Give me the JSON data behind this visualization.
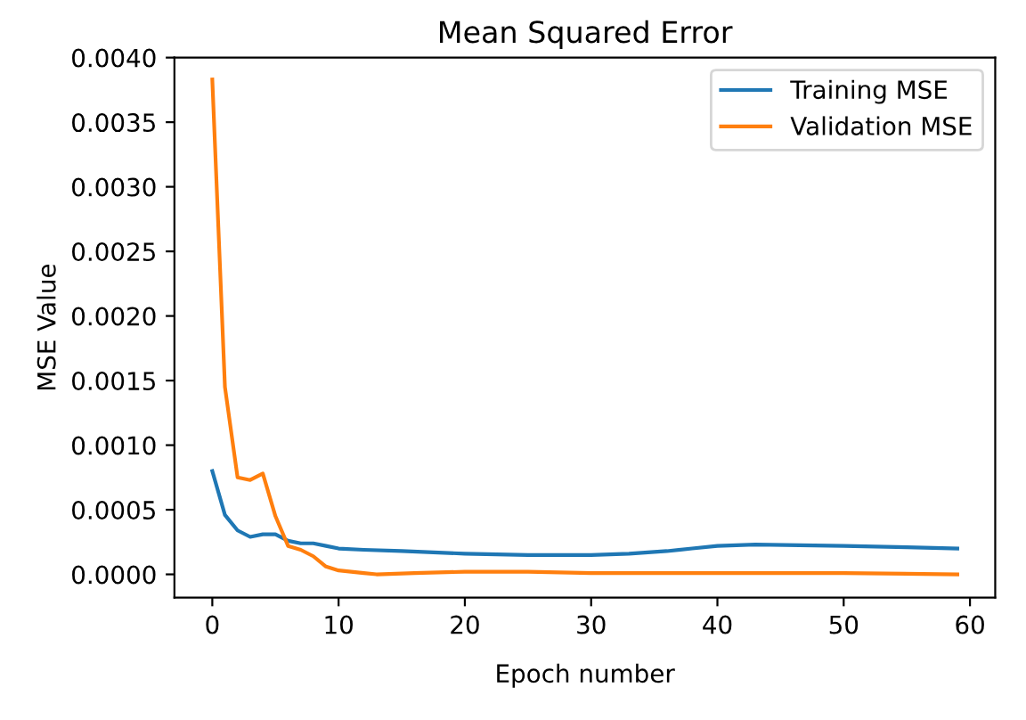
{
  "chart_data": {
    "type": "line",
    "title": "Mean Squared Error",
    "xlabel": "Epoch number",
    "ylabel": "MSE Value",
    "xlim": [
      -3,
      62
    ],
    "ylim": [
      -0.00018,
      0.004
    ],
    "xticks": [
      0,
      10,
      20,
      30,
      40,
      50,
      60
    ],
    "yticks": [
      {
        "value": 0,
        "label": "0.0000"
      },
      {
        "value": 0.0005,
        "label": "0.0005"
      },
      {
        "value": 0.001,
        "label": "0.0010"
      },
      {
        "value": 0.0015,
        "label": "0.0015"
      },
      {
        "value": 0.002,
        "label": "0.0020"
      },
      {
        "value": 0.0025,
        "label": "0.0025"
      },
      {
        "value": 0.003,
        "label": "0.0030"
      },
      {
        "value": 0.0035,
        "label": "0.0035"
      },
      {
        "value": 0.004,
        "label": "0.0040"
      }
    ],
    "legend": "top right",
    "grid": false,
    "series": [
      {
        "name": "Training MSE",
        "color": "#1f77b4",
        "x": [
          0,
          1,
          2,
          3,
          4,
          5,
          6,
          7,
          8,
          9,
          10,
          12,
          15,
          20,
          25,
          30,
          33,
          36,
          38,
          40,
          43,
          50,
          55,
          59
        ],
        "values": [
          0.0008,
          0.00046,
          0.00034,
          0.00029,
          0.00031,
          0.00031,
          0.00026,
          0.00024,
          0.00024,
          0.00022,
          0.0002,
          0.00019,
          0.00018,
          0.00016,
          0.00015,
          0.00015,
          0.00016,
          0.00018,
          0.0002,
          0.00022,
          0.00023,
          0.00022,
          0.00021,
          0.0002
        ]
      },
      {
        "name": "Validation MSE",
        "color": "#ff7f0e",
        "x": [
          0,
          1,
          2,
          3,
          4,
          5,
          6,
          7,
          8,
          9,
          10,
          11,
          12,
          13,
          16,
          20,
          25,
          30,
          40,
          50,
          59
        ],
        "values": [
          0.00383,
          0.00145,
          0.00075,
          0.00073,
          0.00078,
          0.00045,
          0.00022,
          0.00019,
          0.00014,
          6e-05,
          3e-05,
          2e-05,
          1e-05,
          0.0,
          1e-05,
          2e-05,
          2e-05,
          1e-05,
          1e-05,
          1e-05,
          0.0
        ]
      }
    ]
  }
}
